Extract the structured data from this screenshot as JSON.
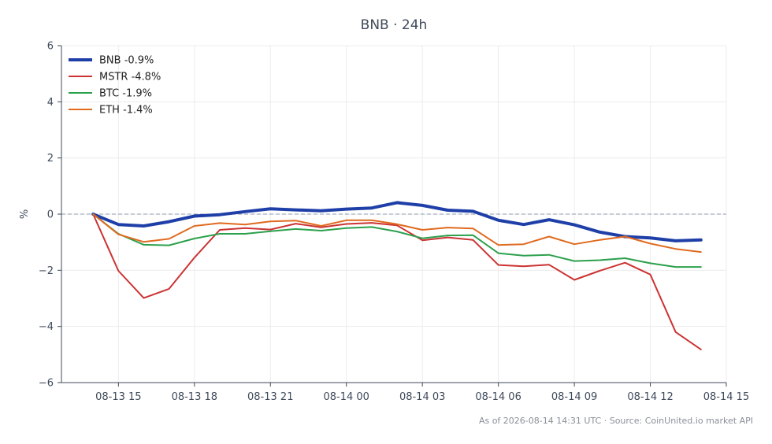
{
  "chart_data": {
    "type": "line",
    "title": "BNB · 24h",
    "xlabel": "",
    "ylabel": "%",
    "ylim": [
      -6,
      6
    ],
    "xlim": [
      "2026-08-13 12:45",
      "2026-08-14 15:00"
    ],
    "yticks": [
      -6,
      -4,
      -2,
      0,
      2,
      4,
      6
    ],
    "yticklabels": [
      "−6",
      "−4",
      "−2",
      "0",
      "2",
      "4",
      "6"
    ],
    "xticks": [
      "2026-08-13 15:00",
      "2026-08-13 18:00",
      "2026-08-13 21:00",
      "2026-08-14 00:00",
      "2026-08-14 03:00",
      "2026-08-14 06:00",
      "2026-08-14 09:00",
      "2026-08-14 12:00",
      "2026-08-14 15:00"
    ],
    "xticklabels": [
      "08-13 15",
      "08-13 18",
      "08-13 21",
      "08-14 00",
      "08-14 03",
      "08-14 06",
      "08-14 09",
      "08-14 12",
      "08-14 15"
    ],
    "grid": true,
    "zero_line": true,
    "legend_position": "top-left",
    "x": [
      "2026-08-13 14:00",
      "2026-08-13 15:00",
      "2026-08-13 16:00",
      "2026-08-13 17:00",
      "2026-08-13 18:00",
      "2026-08-13 19:00",
      "2026-08-13 20:00",
      "2026-08-13 21:00",
      "2026-08-13 22:00",
      "2026-08-13 23:00",
      "2026-08-14 00:00",
      "2026-08-14 01:00",
      "2026-08-14 02:00",
      "2026-08-14 03:00",
      "2026-08-14 04:00",
      "2026-08-14 05:00",
      "2026-08-14 06:00",
      "2026-08-14 07:00",
      "2026-08-14 08:00",
      "2026-08-14 09:00",
      "2026-08-14 10:00",
      "2026-08-14 11:00",
      "2026-08-14 12:00",
      "2026-08-14 13:00",
      "2026-08-14 14:00"
    ],
    "series": [
      {
        "name": "BNB -0.9%",
        "color": "#1f3fa8",
        "width": 4,
        "values": [
          0.0,
          -0.37,
          -0.42,
          -0.27,
          -0.07,
          -0.02,
          0.09,
          0.19,
          0.15,
          0.12,
          0.18,
          0.22,
          0.41,
          0.31,
          0.14,
          0.1,
          -0.22,
          -0.37,
          -0.2,
          -0.38,
          -0.64,
          -0.8,
          -0.85,
          -0.95,
          -0.92
        ]
      },
      {
        "name": "MSTR -4.8%",
        "color": "#cc3333",
        "width": 2,
        "values": [
          0.0,
          -2.02,
          -2.99,
          -2.66,
          -1.55,
          -0.56,
          -0.5,
          -0.55,
          -0.34,
          -0.47,
          -0.35,
          -0.31,
          -0.4,
          -0.93,
          -0.83,
          -0.92,
          -1.81,
          -1.86,
          -1.8,
          -2.34,
          -2.02,
          -1.73,
          -2.15,
          -4.2,
          -4.82
        ]
      },
      {
        "name": "BTC -1.9%",
        "color": "#2ca04c",
        "width": 2,
        "values": [
          0.0,
          -0.7,
          -1.09,
          -1.11,
          -0.87,
          -0.7,
          -0.7,
          -0.61,
          -0.53,
          -0.59,
          -0.5,
          -0.46,
          -0.62,
          -0.86,
          -0.76,
          -0.75,
          -1.39,
          -1.48,
          -1.45,
          -1.67,
          -1.64,
          -1.57,
          -1.75,
          -1.88,
          -1.88
        ]
      },
      {
        "name": "ETH -1.4%",
        "color": "#e06a1f",
        "width": 2,
        "values": [
          0.0,
          -0.72,
          -0.99,
          -0.88,
          -0.42,
          -0.32,
          -0.37,
          -0.26,
          -0.23,
          -0.42,
          -0.22,
          -0.22,
          -0.36,
          -0.56,
          -0.48,
          -0.51,
          -1.1,
          -1.07,
          -0.8,
          -1.07,
          -0.92,
          -0.8,
          -1.05,
          -1.24,
          -1.35
        ]
      }
    ],
    "footer": "As of 2026-08-14 14:31 UTC · Source: CoinUnited.io market API"
  }
}
